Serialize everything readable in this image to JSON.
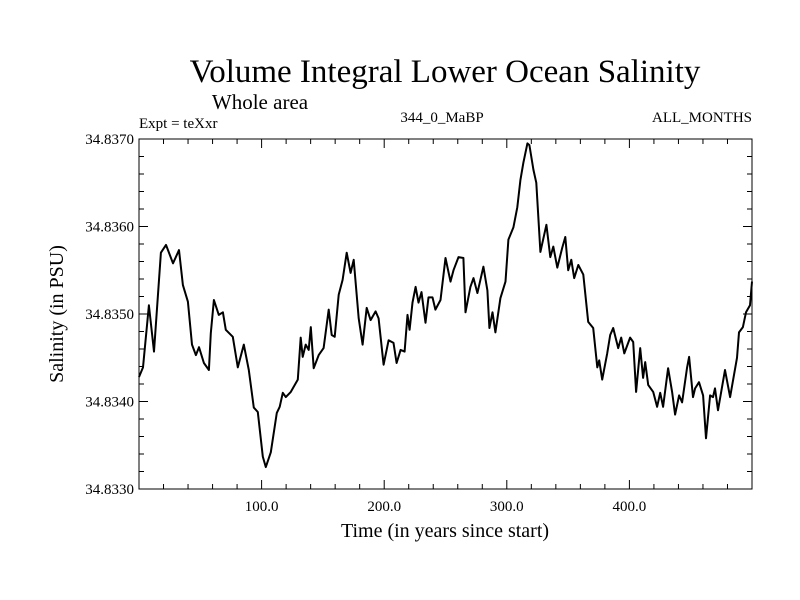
{
  "chart_data": {
    "type": "line",
    "title": "Volume Integral Lower Ocean Salinity",
    "subtitle": "Whole area",
    "annotations": {
      "left": "Expt = teXxr",
      "center": "344_0_MaBP",
      "right": "ALL_MONTHS"
    },
    "xlabel": "Time (in years since start)",
    "ylabel": "Salinity (in PSU)",
    "xlim": [
      0,
      500
    ],
    "ylim": [
      34.833,
      34.837
    ],
    "xticks": [
      100,
      200,
      300,
      400
    ],
    "xtick_labels": [
      "100.0",
      "200.0",
      "300.0",
      "400.0"
    ],
    "x_minor_step": 20,
    "yticks": [
      34.833,
      34.834,
      34.835,
      34.836,
      34.837
    ],
    "ytick_labels": [
      "34.8330",
      "34.8340",
      "34.8350",
      "34.8360",
      "34.8370"
    ],
    "y_minor_step": 0.0002,
    "grid": false,
    "line_color": "#000000",
    "series": [
      {
        "name": "salinity",
        "x": [
          0,
          3.3,
          8.1,
          12.2,
          17.9,
          22.0,
          27.7,
          32.6,
          35.8,
          39.9,
          43.2,
          46.4,
          48.9,
          52.9,
          57.0,
          58.6,
          61.1,
          65.1,
          68.4,
          70.8,
          76.5,
          80.6,
          85.5,
          89.6,
          93.6,
          96.9,
          101.0,
          103.4,
          107.5,
          112.4,
          114.8,
          117.3,
          119.7,
          123.8,
          129.5,
          131.9,
          133.5,
          136.0,
          138.4,
          140.1,
          142.5,
          146.6,
          150.6,
          154.7,
          157.2,
          159.6,
          162.9,
          166.1,
          169.4,
          172.6,
          175.1,
          179.2,
          182.4,
          185.7,
          188.9,
          193.0,
          195.4,
          199.5,
          203.6,
          207.6,
          210.1,
          213.4,
          216.6,
          219.0,
          220.7,
          223.1,
          225.6,
          228.0,
          230.4,
          233.7,
          236.1,
          239.4,
          241.8,
          245.9,
          250.0,
          254.1,
          256.5,
          260.6,
          264.6,
          266.3,
          270.3,
          272.8,
          276.0,
          280.9,
          284.2,
          285.8,
          288.3,
          290.7,
          294.8,
          298.9,
          301.3,
          305.4,
          308.6,
          311.1,
          313.5,
          316.8,
          318.4,
          321.7,
          324.1,
          327.4,
          332.3,
          335.5,
          337.9,
          341.2,
          345.3,
          347.7,
          350.1,
          352.6,
          355.0,
          358.3,
          362.4,
          366.4,
          370.5,
          373.8,
          375.4,
          377.8,
          381.9,
          384.3,
          386.8,
          390.9,
          393.3,
          395.8,
          400.6,
          403.1,
          405.5,
          408.8,
          411.2,
          412.9,
          415.3,
          419.4,
          422.6,
          425.1,
          427.5,
          431.6,
          434.8,
          437.3,
          440.5,
          443.0,
          447.1,
          448.7,
          451.9,
          453.6,
          456.8,
          460.1,
          462.5,
          465.8,
          468.2,
          469.8,
          472.3,
          478.0,
          482.1,
          487.8,
          489.4,
          492.6,
          495.1,
          498.4,
          500.0
        ],
        "values": [
          34.83428,
          34.83439,
          34.8351,
          34.83457,
          34.8357,
          34.83579,
          34.83558,
          34.83573,
          34.83533,
          34.83514,
          34.83465,
          34.83453,
          34.83462,
          34.83444,
          34.83436,
          34.83478,
          34.83516,
          34.83499,
          34.83502,
          34.83482,
          34.83474,
          34.83439,
          34.83465,
          34.83436,
          34.83393,
          34.83388,
          34.83337,
          34.83325,
          34.83342,
          34.83387,
          34.83394,
          34.8341,
          34.83405,
          34.83411,
          34.83425,
          34.83473,
          34.83451,
          34.83465,
          34.83459,
          34.83485,
          34.83438,
          34.83453,
          34.83461,
          34.83505,
          34.83476,
          34.83474,
          34.83522,
          34.83539,
          34.8357,
          34.83547,
          34.83562,
          34.83495,
          34.83465,
          34.83507,
          34.83493,
          34.83503,
          34.83495,
          34.83442,
          34.8347,
          34.83467,
          34.83444,
          34.83459,
          34.83457,
          34.83499,
          34.83482,
          34.83513,
          34.83531,
          34.83513,
          34.83525,
          34.8349,
          34.83519,
          34.83519,
          34.83505,
          34.83516,
          34.83564,
          34.83537,
          34.8355,
          34.83565,
          34.83564,
          34.83502,
          34.83531,
          34.83541,
          34.83524,
          34.83554,
          34.83527,
          34.83484,
          34.83502,
          34.83479,
          34.83518,
          34.83537,
          34.83585,
          34.83599,
          34.83622,
          34.83653,
          34.83673,
          34.83695,
          34.83693,
          34.83665,
          34.8365,
          34.83571,
          34.83602,
          34.83565,
          34.83577,
          34.83553,
          34.83576,
          34.83588,
          34.8355,
          34.83562,
          34.83541,
          34.83556,
          34.83545,
          34.83491,
          34.83484,
          34.83439,
          34.83447,
          34.83425,
          34.83455,
          34.83476,
          34.83484,
          34.83461,
          34.83473,
          34.83455,
          34.83473,
          34.83468,
          34.83411,
          34.83461,
          34.83427,
          34.83445,
          34.83419,
          34.83411,
          34.83394,
          34.8341,
          34.83394,
          34.83438,
          34.83411,
          34.83385,
          34.83407,
          34.83399,
          34.83439,
          34.83451,
          34.83405,
          34.83415,
          34.83422,
          34.83407,
          34.83358,
          34.83407,
          34.83405,
          34.83415,
          34.8339,
          34.83436,
          34.83405,
          34.8345,
          34.83479,
          34.83485,
          34.83502,
          34.8351,
          34.83537
        ]
      }
    ]
  }
}
